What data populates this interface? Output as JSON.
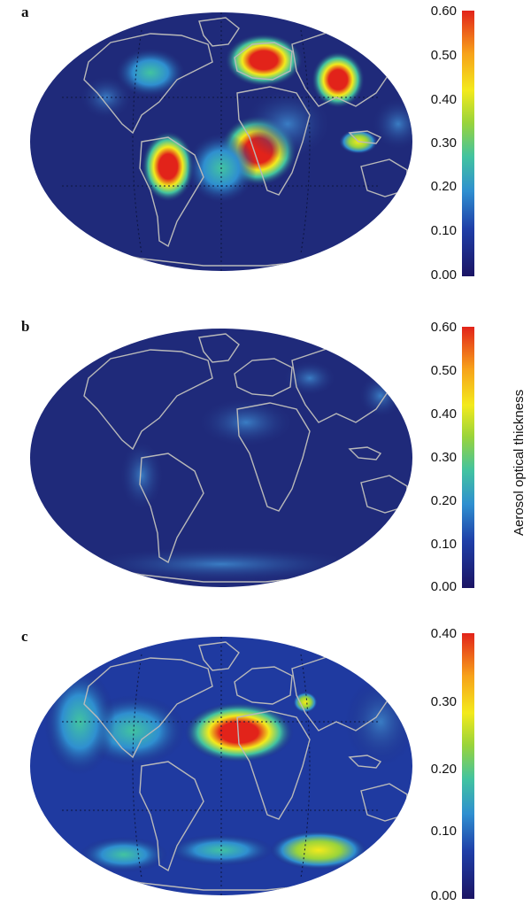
{
  "panels": [
    {
      "letter": "a",
      "colorbar_ticks": [
        "0.60",
        "0.50",
        "0.40",
        "0.30",
        "0.20",
        "0.10",
        "0.00"
      ],
      "colorbar_range": [
        0.0,
        0.6
      ]
    },
    {
      "letter": "b",
      "colorbar_ticks": [
        "0.60",
        "0.50",
        "0.40",
        "0.30",
        "0.20",
        "0.10",
        "0.00"
      ],
      "colorbar_range": [
        0.0,
        0.6
      ]
    },
    {
      "letter": "c",
      "colorbar_ticks": [
        "0.40",
        "0.30",
        "0.20",
        "0.10",
        "0.00"
      ],
      "colorbar_range": [
        0.0,
        0.4
      ]
    }
  ],
  "colorbar_title": "Aerosol optical thickness",
  "colors": {
    "ocean_background": "#1f2a7a",
    "coastline": "#b9b9b9",
    "scale": [
      "#1b1464",
      "#1f3fa8",
      "#2f8fd0",
      "#42c3a0",
      "#9ad43a",
      "#f3ea1c",
      "#f7a11a",
      "#e2231a"
    ]
  },
  "projection": "Mollweide (global)",
  "icons": {
    "coastline": "world-coastline-outline"
  }
}
